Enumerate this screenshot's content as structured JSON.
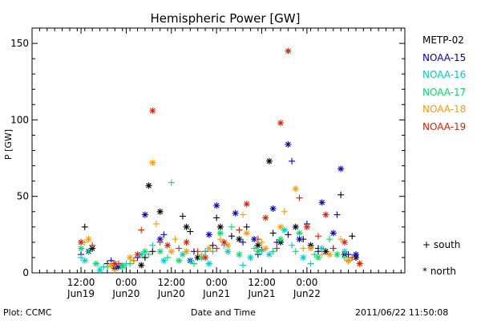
{
  "chart_data": {
    "type": "scatter",
    "title": "Hemispheric Power [GW]",
    "ylabel": "P [GW]",
    "xlabel": "Date and Time",
    "ylim": [
      0,
      160
    ],
    "yticks": [
      0,
      50,
      100,
      150
    ],
    "xlim_hours": [
      -13,
      86
    ],
    "xticks": [
      {
        "hour": 0,
        "time": "12:00",
        "date": "Jun19"
      },
      {
        "hour": 12,
        "time": "0:00",
        "date": "Jun20"
      },
      {
        "hour": 24,
        "time": "12:00",
        "date": "Jun20"
      },
      {
        "hour": 36,
        "time": "0:00",
        "date": "Jun21"
      },
      {
        "hour": 48,
        "time": "12:00",
        "date": "Jun21"
      },
      {
        "hour": 60,
        "time": "0:00",
        "date": "Jun22"
      }
    ],
    "x_unit_note": "x values are hours after 2011-06-19 12:00 UT",
    "series": [
      {
        "name": "METP-02",
        "color": "#000000",
        "south": [
          [
            1,
            30
          ],
          [
            7,
            6
          ],
          [
            14,
            8
          ],
          [
            17,
            10
          ],
          [
            19,
            14
          ],
          [
            27,
            37
          ],
          [
            29,
            27
          ],
          [
            33,
            14
          ],
          [
            36,
            36
          ],
          [
            40,
            24
          ],
          [
            44,
            30
          ],
          [
            48,
            15
          ],
          [
            51,
            26
          ],
          [
            55,
            25
          ],
          [
            59,
            22
          ],
          [
            63,
            16
          ],
          [
            67,
            16
          ],
          [
            69,
            51
          ],
          [
            72,
            24
          ],
          [
            71,
            8
          ]
        ],
        "north": [
          [
            3,
            16
          ],
          [
            9,
            3
          ],
          [
            16,
            5
          ],
          [
            18,
            57
          ],
          [
            21,
            40
          ],
          [
            28,
            30
          ],
          [
            31,
            10
          ],
          [
            37,
            30
          ],
          [
            42,
            22
          ],
          [
            47,
            18
          ],
          [
            50,
            73
          ],
          [
            53,
            20
          ],
          [
            57,
            30
          ],
          [
            61,
            18
          ],
          [
            65,
            14
          ],
          [
            70,
            12
          ],
          [
            73,
            10
          ]
        ]
      },
      {
        "name": "NOAA-15",
        "color": "#0000cc",
        "south": [
          [
            0,
            12
          ],
          [
            8,
            8
          ],
          [
            15,
            10
          ],
          [
            22,
            25
          ],
          [
            30,
            14
          ],
          [
            35,
            18
          ],
          [
            43,
            20
          ],
          [
            47,
            12
          ],
          [
            52,
            20
          ],
          [
            56,
            73
          ],
          [
            60,
            32
          ],
          [
            63,
            14
          ],
          [
            68,
            38
          ],
          [
            71,
            12
          ]
        ],
        "north": [
          [
            2,
            14
          ],
          [
            10,
            4
          ],
          [
            17,
            38
          ],
          [
            21,
            22
          ],
          [
            29,
            8
          ],
          [
            34,
            25
          ],
          [
            36,
            44
          ],
          [
            41,
            39
          ],
          [
            46,
            22
          ],
          [
            51,
            42
          ],
          [
            55,
            84
          ],
          [
            58,
            22
          ],
          [
            64,
            46
          ],
          [
            67,
            26
          ],
          [
            69,
            68
          ],
          [
            73,
            12
          ]
        ]
      },
      {
        "name": "NOAA-16",
        "color": "#00cccc",
        "south": [
          [
            0,
            10
          ],
          [
            6,
            4
          ],
          [
            12,
            6
          ],
          [
            19,
            18
          ],
          [
            24,
            59
          ],
          [
            29,
            8
          ],
          [
            33,
            14
          ],
          [
            38,
            18
          ],
          [
            43,
            5
          ],
          [
            48,
            14
          ],
          [
            52,
            16
          ],
          [
            56,
            18
          ],
          [
            61,
            6
          ],
          [
            66,
            12
          ]
        ],
        "north": [
          [
            1,
            8
          ],
          [
            5,
            2
          ],
          [
            11,
            5
          ],
          [
            16,
            12
          ],
          [
            22,
            8
          ],
          [
            27,
            12
          ],
          [
            34,
            6
          ],
          [
            39,
            14
          ],
          [
            45,
            10
          ],
          [
            50,
            12
          ],
          [
            54,
            28
          ],
          [
            59,
            10
          ],
          [
            64,
            16
          ],
          [
            70,
            14
          ]
        ]
      },
      {
        "name": "NOAA-17",
        "color": "#00dd66",
        "south": [
          [
            2,
            14
          ],
          [
            7,
            4
          ],
          [
            13,
            6
          ],
          [
            18,
            12
          ],
          [
            23,
            10
          ],
          [
            30,
            6
          ],
          [
            35,
            14
          ],
          [
            40,
            30
          ],
          [
            46,
            16
          ],
          [
            51,
            14
          ],
          [
            57,
            14
          ],
          [
            62,
            12
          ],
          [
            66,
            22
          ],
          [
            70,
            10
          ]
        ],
        "north": [
          [
            0,
            16
          ],
          [
            4,
            6
          ],
          [
            11,
            4
          ],
          [
            17,
            14
          ],
          [
            21,
            14
          ],
          [
            26,
            8
          ],
          [
            32,
            10
          ],
          [
            37,
            26
          ],
          [
            42,
            12
          ],
          [
            47,
            14
          ],
          [
            53,
            22
          ],
          [
            58,
            26
          ],
          [
            63,
            10
          ],
          [
            68,
            12
          ]
        ]
      },
      {
        "name": "NOAA-18",
        "color": "#ff9900",
        "south": [
          [
            1,
            20
          ],
          [
            9,
            2
          ],
          [
            14,
            8
          ],
          [
            20,
            32
          ],
          [
            25,
            22
          ],
          [
            32,
            12
          ],
          [
            37,
            22
          ],
          [
            43,
            38
          ],
          [
            48,
            20
          ],
          [
            54,
            40
          ],
          [
            59,
            16
          ],
          [
            64,
            12
          ],
          [
            69,
            22
          ]
        ],
        "north": [
          [
            2,
            22
          ],
          [
            8,
            5
          ],
          [
            13,
            10
          ],
          [
            19,
            72
          ],
          [
            24,
            14
          ],
          [
            28,
            14
          ],
          [
            34,
            16
          ],
          [
            39,
            18
          ],
          [
            44,
            26
          ],
          [
            49,
            16
          ],
          [
            53,
            30
          ],
          [
            57,
            55
          ],
          [
            61,
            16
          ],
          [
            66,
            12
          ],
          [
            71,
            8
          ]
        ]
      },
      {
        "name": "NOAA-19",
        "color": "#dd2200",
        "south": [
          [
            3,
            18
          ],
          [
            10,
            6
          ],
          [
            16,
            28
          ],
          [
            21,
            20
          ],
          [
            26,
            16
          ],
          [
            31,
            14
          ],
          [
            36,
            16
          ],
          [
            42,
            28
          ],
          [
            47,
            22
          ],
          [
            52,
            16
          ],
          [
            58,
            49
          ],
          [
            63,
            24
          ],
          [
            67,
            16
          ],
          [
            72,
            10
          ]
        ],
        "north": [
          [
            0,
            20
          ],
          [
            9,
            6
          ],
          [
            15,
            12
          ],
          [
            19,
            106
          ],
          [
            23,
            18
          ],
          [
            28,
            20
          ],
          [
            33,
            10
          ],
          [
            38,
            20
          ],
          [
            44,
            45
          ],
          [
            49,
            36
          ],
          [
            53,
            98
          ],
          [
            55,
            145
          ],
          [
            60,
            30
          ],
          [
            65,
            38
          ],
          [
            70,
            20
          ],
          [
            74,
            6
          ]
        ]
      }
    ]
  },
  "legend": {
    "entries": [
      {
        "name": "METP-02",
        "color": "#000000"
      },
      {
        "name": "NOAA-15",
        "color": "#0000cc"
      },
      {
        "name": "NOAA-16",
        "color": "#00cccc"
      },
      {
        "name": "NOAA-17",
        "color": "#00dd66"
      },
      {
        "name": "NOAA-18",
        "color": "#ff9900"
      },
      {
        "name": "NOAA-19",
        "color": "#dd2200"
      }
    ],
    "south_label": "+ south",
    "north_label": "* north"
  },
  "footer": {
    "left": "Plot: CCMC",
    "center": "Date and Time",
    "right": "2011/06/22 11:50:08"
  }
}
